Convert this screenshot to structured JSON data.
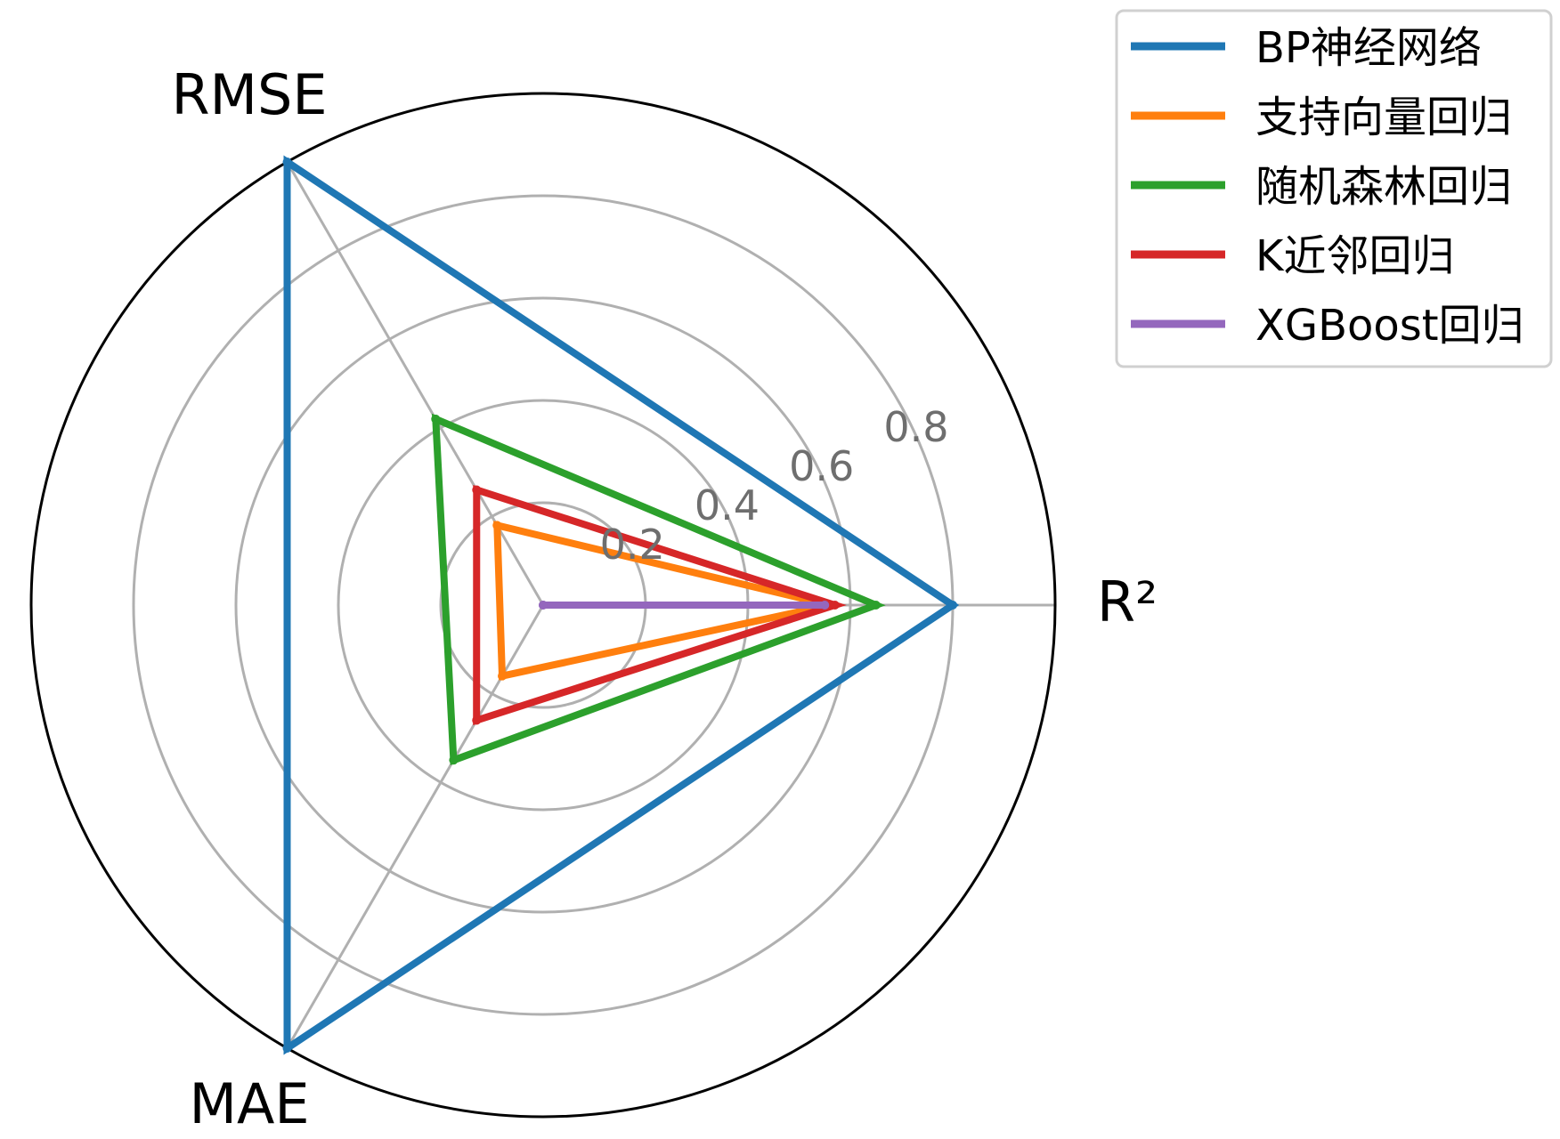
{
  "chart_data": {
    "type": "radar",
    "axes": [
      "R²",
      "RMSE",
      "MAE"
    ],
    "radial_ticks": [
      0.2,
      0.4,
      0.6,
      0.8
    ],
    "rlim": [
      0,
      1.0
    ],
    "grid": true,
    "legend_position": "top-right",
    "series": [
      {
        "name": "BP神经网络",
        "color": "#1f77b4",
        "values": [
          0.8,
          1.0,
          1.0
        ]
      },
      {
        "name": "支持向量回归",
        "color": "#ff7f0e",
        "values": [
          0.56,
          0.18,
          0.16
        ]
      },
      {
        "name": "随机森林回归",
        "color": "#2ca02c",
        "values": [
          0.65,
          0.42,
          0.35
        ]
      },
      {
        "name": "K近邻回归",
        "color": "#d62728",
        "values": [
          0.57,
          0.26,
          0.26
        ]
      },
      {
        "name": "XGBoost回归",
        "color": "#9467bd",
        "values": [
          0.55,
          0.0,
          0.0
        ]
      }
    ]
  }
}
